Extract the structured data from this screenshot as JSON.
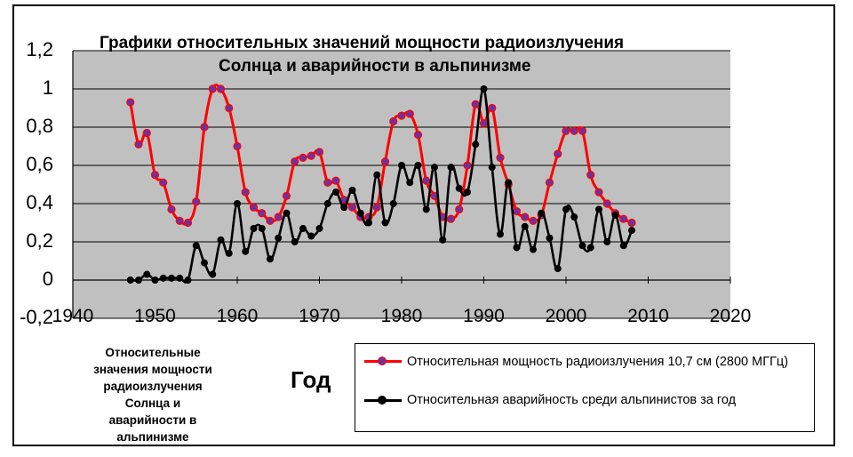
{
  "chart_data": {
    "type": "line",
    "title_line1": "Графики относительных значений мощности радиоизлучения",
    "title_line2": "Солнца и аварийности в альпинизме",
    "xlabel": "Год",
    "ylabel": "",
    "xlim": [
      1940,
      2020
    ],
    "ylim": [
      -0.2,
      1.2
    ],
    "x_ticks": [
      "1940",
      "1950",
      "1960",
      "1970",
      "1980",
      "1990",
      "2000",
      "2010",
      "2020"
    ],
    "y_ticks": [
      "1,2",
      "1",
      "0,8",
      "0,6",
      "0,4",
      "0,2",
      "0",
      "-0,2"
    ],
    "grid": true,
    "legend_position": "bottom-right",
    "series": [
      {
        "name": "Относительная мощность радиоизлучения 10,7 см (2800 МГГц)",
        "color": "#ff0000",
        "marker_color": "#7030a0",
        "x": [
          1947,
          1948,
          1949,
          1950,
          1951,
          1952,
          1953,
          1954,
          1955,
          1956,
          1957,
          1958,
          1959,
          1960,
          1961,
          1962,
          1963,
          1964,
          1965,
          1966,
          1967,
          1968,
          1969,
          1970,
          1971,
          1972,
          1973,
          1974,
          1975,
          1976,
          1977,
          1978,
          1979,
          1980,
          1981,
          1982,
          1983,
          1984,
          1985,
          1986,
          1987,
          1988,
          1989,
          1990,
          1991,
          1992,
          1993,
          1994,
          1995,
          1996,
          1997,
          1998,
          1999,
          2000,
          2001,
          2002,
          2003,
          2004,
          2005,
          2006,
          2007,
          2008
        ],
        "y": [
          0.93,
          0.71,
          0.77,
          0.55,
          0.51,
          0.37,
          0.31,
          0.3,
          0.41,
          0.8,
          1.0,
          1.0,
          0.9,
          0.7,
          0.46,
          0.38,
          0.35,
          0.31,
          0.33,
          0.44,
          0.62,
          0.64,
          0.65,
          0.67,
          0.51,
          0.52,
          0.42,
          0.38,
          0.33,
          0.33,
          0.38,
          0.62,
          0.83,
          0.86,
          0.87,
          0.76,
          0.52,
          0.44,
          0.33,
          0.32,
          0.37,
          0.6,
          0.92,
          0.82,
          0.9,
          0.64,
          0.5,
          0.36,
          0.33,
          0.31,
          0.34,
          0.51,
          0.66,
          0.78,
          0.78,
          0.78,
          0.55,
          0.46,
          0.4,
          0.35,
          0.32,
          0.3
        ]
      },
      {
        "name": "Относительная аварийность среди альпинистов за год",
        "color": "#000000",
        "marker_color": "#000000",
        "x": [
          1947,
          1948,
          1949,
          1950,
          1951,
          1952,
          1953,
          1954,
          1955,
          1956,
          1957,
          1958,
          1959,
          1960,
          1961,
          1962,
          1963,
          1964,
          1965,
          1966,
          1967,
          1968,
          1969,
          1970,
          1971,
          1972,
          1973,
          1974,
          1975,
          1976,
          1977,
          1978,
          1979,
          1980,
          1981,
          1982,
          1983,
          1984,
          1985,
          1986,
          1987,
          1988,
          1989,
          1990,
          1991,
          1992,
          1993,
          1994,
          1995,
          1996,
          1997,
          1998,
          1999,
          2000,
          2001,
          2002,
          2003,
          2004,
          2005,
          2006,
          2007,
          2008
        ],
        "y": [
          0.0,
          0.0,
          0.03,
          0.0,
          0.01,
          0.01,
          0.01,
          0.0,
          0.18,
          0.09,
          0.03,
          0.21,
          0.14,
          0.4,
          0.15,
          0.27,
          0.27,
          0.11,
          0.22,
          0.35,
          0.2,
          0.27,
          0.23,
          0.27,
          0.4,
          0.46,
          0.38,
          0.47,
          0.35,
          0.3,
          0.55,
          0.3,
          0.4,
          0.6,
          0.51,
          0.6,
          0.37,
          0.59,
          0.21,
          0.59,
          0.48,
          0.46,
          0.71,
          1.0,
          0.59,
          0.24,
          0.51,
          0.17,
          0.28,
          0.16,
          0.35,
          0.22,
          0.06,
          0.37,
          0.33,
          0.18,
          0.17,
          0.37,
          0.2,
          0.34,
          0.18,
          0.26
        ]
      }
    ],
    "side_note": "Относительные\nзначения мощности\nрадиоизлучения\nСолнца и\nаварийности в\nальпинизме"
  }
}
